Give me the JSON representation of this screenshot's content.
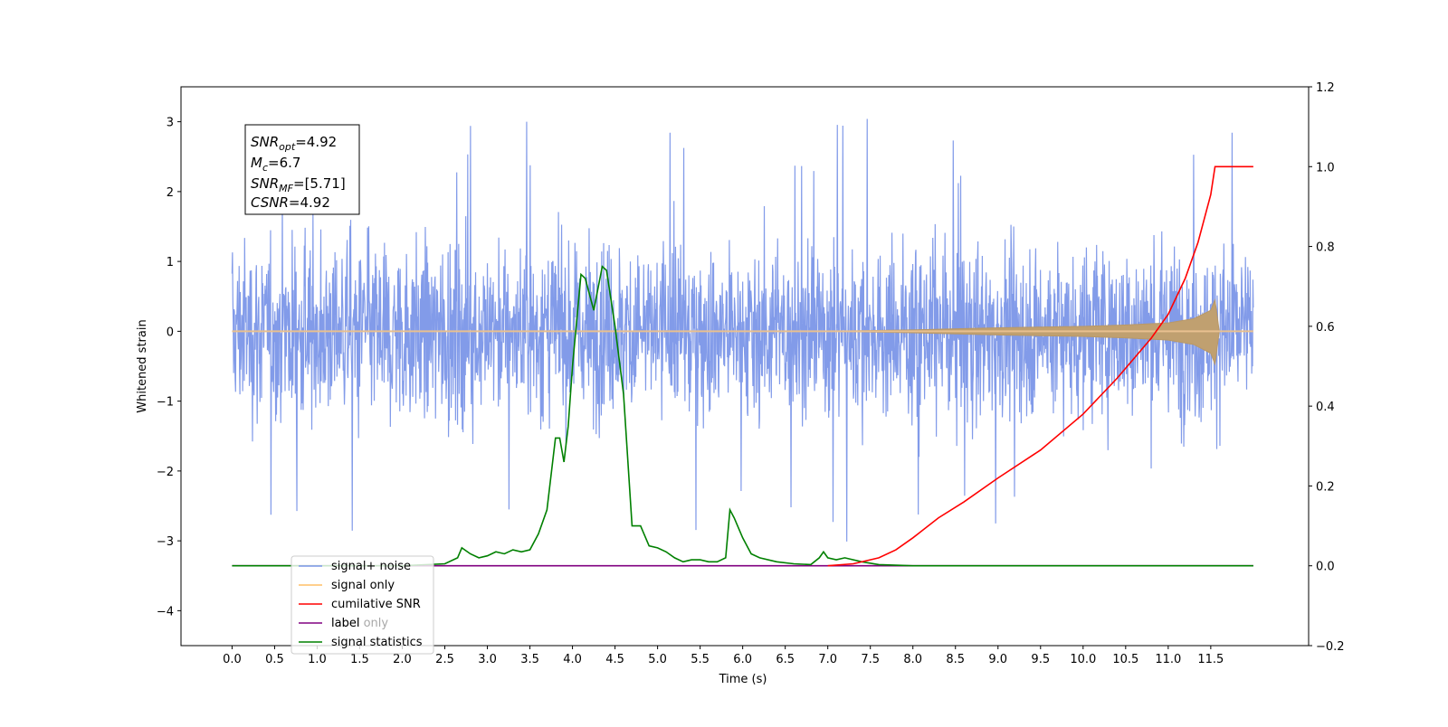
{
  "chart_data": {
    "type": "line",
    "xlabel": "Time (s)",
    "ylabel_left": "Whitened strain",
    "ylabel_right": "",
    "xlim": [
      -0.6,
      12.65
    ],
    "ylim_left": [
      -4.5,
      3.5
    ],
    "ylim_right": [
      -0.2,
      1.2
    ],
    "x_ticks": [
      "0.0",
      "0.5",
      "1.0",
      "1.5",
      "2.0",
      "2.5",
      "3.0",
      "3.5",
      "4.0",
      "4.5",
      "5.0",
      "5.5",
      "6.0",
      "6.5",
      "7.0",
      "7.5",
      "8.0",
      "8.5",
      "9.0",
      "9.5",
      "10.0",
      "10.5",
      "11.0",
      "11.5"
    ],
    "y_ticks_left": [
      "3",
      "2",
      "1",
      "0",
      "−1",
      "−2",
      "−3",
      "−4"
    ],
    "y_ticks_right": [
      "1.2",
      "1.0",
      "0.8",
      "0.6",
      "0.4",
      "0.2",
      "0.0",
      "−0.2"
    ],
    "grid": false,
    "legend_position": "lower-left",
    "info_box": {
      "line1": {
        "sym": "SNR",
        "sub": "opt",
        "val": "=4.92"
      },
      "line2": {
        "sym": "M",
        "sub": "c",
        "val": "=6.7"
      },
      "line3": {
        "sym": "SNR",
        "sub": "MF",
        "val": "=[5.71]"
      },
      "line4": {
        "sym": "CSNR",
        "sub": "",
        "val": "=4.92"
      }
    },
    "series": [
      {
        "name": "signal+ noise",
        "color": "#7b96e8",
        "axis": "left",
        "x_range": [
          0.0,
          12.0
        ],
        "typical_amplitude": 1.5,
        "peak_amplitude": 3.1
      },
      {
        "name": "signal only",
        "color": "#ffbf66",
        "axis": "left",
        "x_range": [
          0.0,
          11.6
        ],
        "envelope": {
          "x": [
            0.0,
            7.0,
            8.0,
            9.0,
            10.0,
            10.5,
            11.0,
            11.3,
            11.5,
            11.55,
            11.6
          ],
          "amp": [
            0.0,
            0.0,
            0.02,
            0.05,
            0.07,
            0.09,
            0.12,
            0.18,
            0.3,
            0.45,
            0.0
          ]
        }
      },
      {
        "name": "cumilative SNR",
        "color": "#ff0000",
        "axis": "right",
        "x": [
          7.0,
          7.3,
          7.6,
          7.8,
          8.0,
          8.3,
          8.6,
          9.0,
          9.5,
          10.0,
          10.4,
          10.8,
          11.0,
          11.2,
          11.35,
          11.45,
          11.5,
          11.55,
          11.6,
          11.8,
          12.0
        ],
        "y": [
          0.0,
          0.005,
          0.02,
          0.04,
          0.07,
          0.12,
          0.16,
          0.22,
          0.29,
          0.38,
          0.47,
          0.57,
          0.63,
          0.72,
          0.81,
          0.89,
          0.93,
          1.0,
          1.0,
          1.0,
          1.0
        ]
      },
      {
        "name": "label",
        "color": "#800080",
        "axis": "right",
        "x": [
          0.0,
          12.0
        ],
        "y": [
          0.0,
          0.0
        ]
      },
      {
        "name": "signal statistics",
        "color": "#008000",
        "axis": "right",
        "x": [
          0.0,
          2.0,
          2.5,
          2.65,
          2.7,
          2.8,
          2.9,
          3.0,
          3.1,
          3.2,
          3.3,
          3.4,
          3.5,
          3.6,
          3.7,
          3.8,
          3.85,
          3.9,
          3.95,
          4.0,
          4.1,
          4.15,
          4.25,
          4.35,
          4.4,
          4.5,
          4.6,
          4.7,
          4.8,
          4.9,
          5.0,
          5.1,
          5.2,
          5.3,
          5.4,
          5.5,
          5.6,
          5.7,
          5.8,
          5.85,
          5.9,
          6.0,
          6.1,
          6.2,
          6.4,
          6.6,
          6.8,
          6.9,
          6.95,
          7.0,
          7.1,
          7.2,
          7.4,
          7.6,
          8.0,
          9.0,
          10.0,
          12.0
        ],
        "y": [
          0.0,
          0.0,
          0.005,
          0.02,
          0.045,
          0.03,
          0.02,
          0.025,
          0.035,
          0.03,
          0.04,
          0.035,
          0.04,
          0.08,
          0.14,
          0.32,
          0.32,
          0.26,
          0.35,
          0.5,
          0.73,
          0.72,
          0.64,
          0.75,
          0.74,
          0.6,
          0.43,
          0.1,
          0.1,
          0.05,
          0.045,
          0.035,
          0.02,
          0.01,
          0.015,
          0.015,
          0.01,
          0.01,
          0.02,
          0.14,
          0.12,
          0.07,
          0.03,
          0.02,
          0.01,
          0.005,
          0.003,
          0.02,
          0.035,
          0.02,
          0.015,
          0.02,
          0.01,
          0.003,
          0.0,
          0.0,
          0.0,
          0.0
        ]
      }
    ]
  },
  "legend": {
    "items": [
      {
        "label": "signal+ noise",
        "color": "#7b96e8"
      },
      {
        "label": "signal only",
        "color": "#ffbf66"
      },
      {
        "label": "cumilative SNR",
        "color": "#ff0000"
      },
      {
        "label": "label",
        "color": "#800080"
      },
      {
        "label": "signal statistics",
        "color": "#008000"
      }
    ],
    "hidden_text": "label only"
  }
}
